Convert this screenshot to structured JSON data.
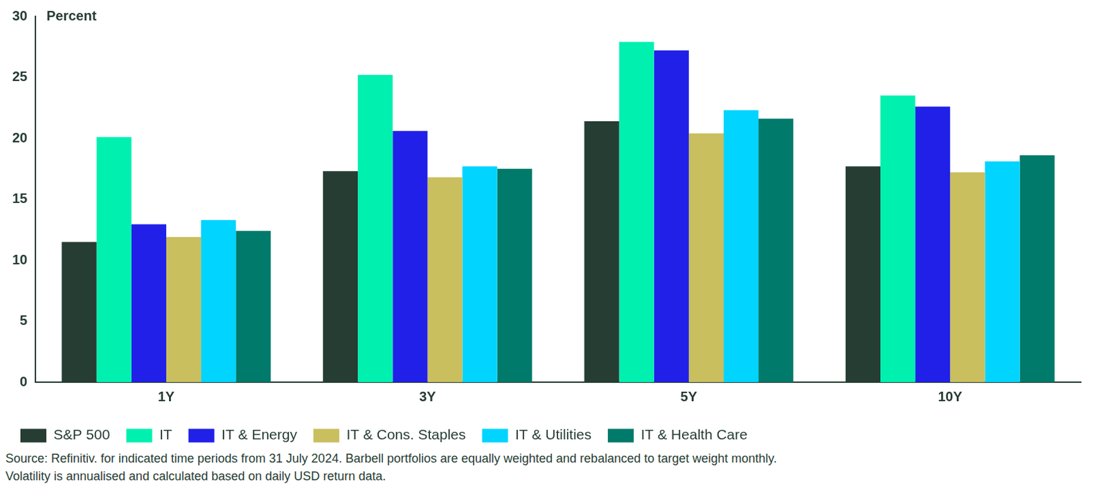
{
  "chart_data": {
    "type": "bar",
    "y_label": "Percent",
    "categories": [
      "1Y",
      "3Y",
      "5Y",
      "10Y"
    ],
    "series": [
      {
        "name": "S&P 500",
        "color": "#263d33",
        "values": [
          11.5,
          17.3,
          21.4,
          17.7
        ]
      },
      {
        "name": "IT",
        "color": "#00f0b0",
        "values": [
          20.1,
          25.2,
          27.9,
          23.5
        ]
      },
      {
        "name": "IT & Energy",
        "color": "#2020e8",
        "values": [
          12.95,
          20.6,
          27.2,
          22.6
        ]
      },
      {
        "name": "IT & Cons. Staples",
        "color": "#c9bf5e",
        "values": [
          11.9,
          16.8,
          20.4,
          17.2
        ]
      },
      {
        "name": "IT & Utilities",
        "color": "#00d4ff",
        "values": [
          13.3,
          17.7,
          22.3,
          18.1
        ]
      },
      {
        "name": "IT & Health Care",
        "color": "#007a6a",
        "values": [
          12.4,
          17.5,
          21.6,
          18.6
        ]
      }
    ],
    "ylim": [
      0,
      30
    ],
    "yticks": [
      0,
      5,
      10,
      15,
      20,
      25,
      30
    ],
    "grid": false,
    "legend": "bottom-left",
    "footnote": [
      "Source: Refinitiv. for indicated time periods from 31 July 2024. Barbell portfolios are equally weighted and rebalanced to target weight monthly.",
      "Volatility is annualised and calculated based on daily USD return data."
    ]
  }
}
